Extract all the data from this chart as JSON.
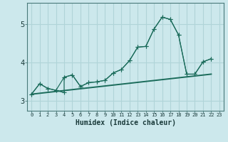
{
  "xlabel": "Humidex (Indice chaleur)",
  "bg_color": "#cce8ec",
  "grid_color": "#b0d4d8",
  "line_color": "#1a6b5a",
  "xlim": [
    -0.5,
    23.5
  ],
  "ylim": [
    2.75,
    5.55
  ],
  "yticks": [
    3,
    4,
    5
  ],
  "xtick_labels": [
    "0",
    "1",
    "2",
    "3",
    "4",
    "5",
    "6",
    "7",
    "8",
    "9",
    "10",
    "11",
    "12",
    "13",
    "14",
    "15",
    "16",
    "17",
    "18",
    "19",
    "20",
    "21",
    "22",
    "23"
  ],
  "series1_x": [
    0,
    1,
    2,
    3,
    4,
    5,
    6,
    7,
    8,
    9,
    10,
    11,
    12,
    13,
    14,
    15,
    16,
    17,
    18,
    19,
    20,
    21,
    22
  ],
  "series1_y": [
    3.18,
    3.45,
    3.33,
    3.28,
    3.62,
    3.68,
    3.38,
    3.48,
    3.5,
    3.54,
    3.73,
    3.82,
    4.05,
    4.4,
    4.42,
    4.87,
    5.18,
    5.12,
    4.72,
    3.7,
    3.7,
    4.02,
    4.1
  ],
  "series2_x": [
    0,
    1,
    2,
    3,
    4,
    4,
    5,
    6,
    7,
    8,
    9,
    10,
    11,
    12,
    13,
    14,
    15,
    16,
    17,
    18,
    19,
    20,
    21,
    22
  ],
  "series2_y": [
    3.18,
    3.45,
    3.33,
    3.28,
    3.22,
    3.62,
    3.68,
    3.38,
    3.48,
    3.5,
    3.54,
    3.73,
    3.82,
    4.05,
    4.4,
    4.42,
    4.87,
    5.18,
    5.12,
    4.72,
    3.7,
    3.7,
    4.02,
    4.1
  ],
  "straight_line_x": [
    0,
    22
  ],
  "straight_line_y": [
    3.18,
    3.7
  ]
}
